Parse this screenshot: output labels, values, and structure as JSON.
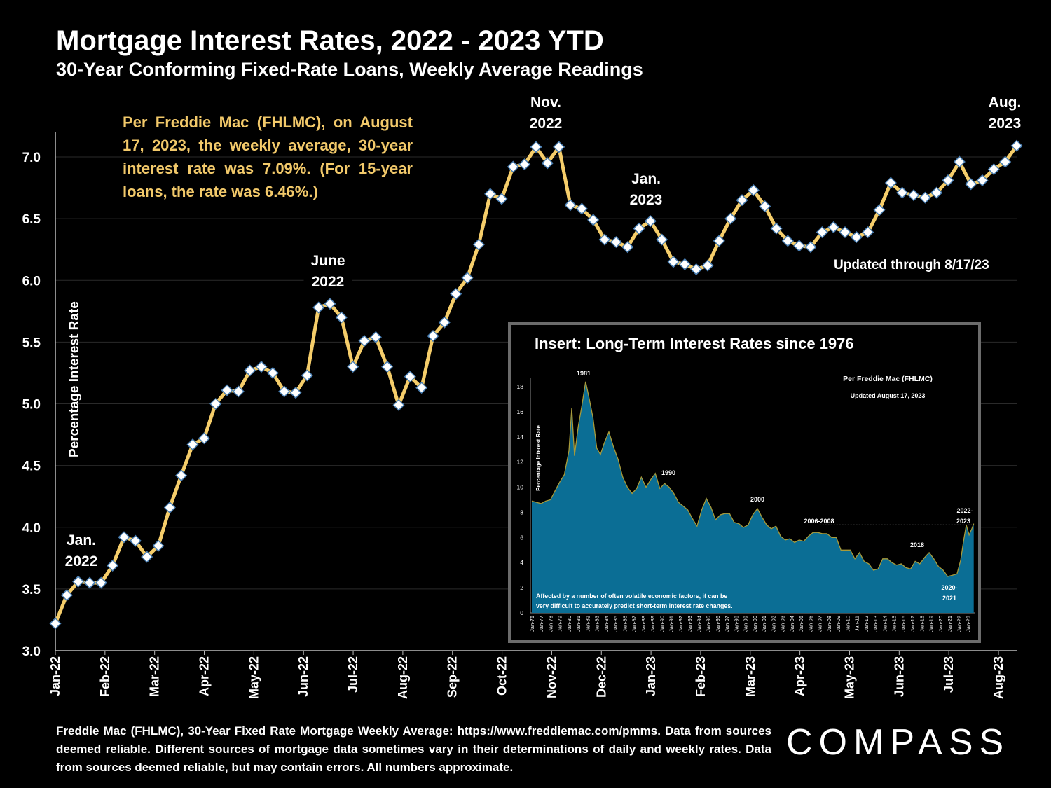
{
  "title": "Mortgage Interest Rates, 2022 - 2023 YTD",
  "subtitle": "30-Year Conforming Fixed-Rate Loans, Weekly Average Readings",
  "note": "Per Freddie Mac (FHLMC), on August 17, 2023, the weekly average, 30-year interest rate was 7.09%. (For 15-year loans, the rate was 6.46%.)",
  "updated": "Updated through 8/17/23",
  "footer": {
    "part1": "Freddie Mac (FHLMC), 30-Year Fixed Rate Mortgage Weekly Average:  https://www.freddiemac.com/pmms. Data from sources deemed reliable. ",
    "underlined": "Different sources of mortgage data sometimes vary in their determinations of daily and weekly rates.",
    "part2": " Data from sources deemed reliable, but may contain errors. All numbers approximate."
  },
  "logo": "COMPASS",
  "colors": {
    "line": "#f5cd6a",
    "marker": "#ffffff",
    "marker_edge": "#4a7fb3",
    "inset_fill": "#0b6e95",
    "inset_line": "#a89a3a"
  },
  "chart_data": [
    {
      "type": "line",
      "title": "Mortgage Interest Rates, 2022 - 2023 YTD",
      "ylabel": "Percentage Interest  Rate",
      "ylim": [
        3.0,
        7.2
      ],
      "yticks": [
        "3.0",
        "3.5",
        "4.0",
        "4.5",
        "5.0",
        "5.5",
        "6.0",
        "6.5",
        "7.0"
      ],
      "month_ticks": [
        "Jan-22",
        "Feb-22",
        "Mar-22",
        "Apr-22",
        "May-22",
        "Jun-22",
        "Jul-22",
        "Aug-22",
        "Sep-22",
        "Oct-22",
        "Nov-22",
        "Dec-22",
        "Jan-23",
        "Feb-23",
        "Mar-23",
        "Apr-23",
        "May-23",
        "Jun-23",
        "Jul-23",
        "Aug-23"
      ],
      "grid": true,
      "values": [
        3.22,
        3.45,
        3.56,
        3.55,
        3.55,
        3.69,
        3.92,
        3.89,
        3.76,
        3.85,
        4.16,
        4.42,
        4.67,
        4.72,
        5.0,
        5.11,
        5.1,
        5.27,
        5.3,
        5.25,
        5.1,
        5.09,
        5.23,
        5.78,
        5.81,
        5.7,
        5.3,
        5.51,
        5.54,
        5.3,
        4.99,
        5.22,
        5.13,
        5.55,
        5.66,
        5.89,
        6.02,
        6.29,
        6.7,
        6.66,
        6.92,
        6.94,
        7.08,
        6.95,
        7.08,
        6.61,
        6.58,
        6.49,
        6.33,
        6.31,
        6.27,
        6.42,
        6.48,
        6.33,
        6.15,
        6.13,
        6.09,
        6.12,
        6.32,
        6.5,
        6.65,
        6.73,
        6.6,
        6.42,
        6.32,
        6.28,
        6.27,
        6.39,
        6.43,
        6.39,
        6.35,
        6.39,
        6.57,
        6.79,
        6.71,
        6.69,
        6.67,
        6.71,
        6.81,
        6.96,
        6.78,
        6.81,
        6.9,
        6.96,
        7.09
      ],
      "annotations": [
        {
          "lines": [
            "Jan.",
            "2022"
          ]
        },
        {
          "lines": [
            "June",
            "2022"
          ]
        },
        {
          "lines": [
            "Nov.",
            "2022"
          ]
        },
        {
          "lines": [
            "Jan.",
            "2023"
          ]
        },
        {
          "lines": [
            "Aug.",
            "2023"
          ]
        }
      ]
    },
    {
      "type": "area",
      "title": "Insert: Long-Term Interest Rates since 1976",
      "ylabel": "Percentage Interest  Rate",
      "ylim": [
        0,
        18
      ],
      "yticks": [
        "0",
        "2",
        "4",
        "6",
        "8",
        "10",
        "12",
        "14",
        "16",
        "18"
      ],
      "years": [
        "Jan-76",
        "Jan-77",
        "Jan-78",
        "Jan-79",
        "Jan-80",
        "Jan-81",
        "Jan-82",
        "Jan-83",
        "Jan-84",
        "Jan-85",
        "Jan-86",
        "Jan-87",
        "Jan-88",
        "Jan-89",
        "Jan-90",
        "Jan-91",
        "Jan-92",
        "Jan-93",
        "Jan-94",
        "Jan-95",
        "Jan-96",
        "Jan-97",
        "Jan-98",
        "Jan-99",
        "Jan-00",
        "Jan-01",
        "Jan-02",
        "Jan-03",
        "Jan-04",
        "Jan-05",
        "Jan-06",
        "Jan-07",
        "Jan-08",
        "Jan-09",
        "Jan-10",
        "Jan-11",
        "Jan-12",
        "Jan-13",
        "Jan-14",
        "Jan-15",
        "Jan-16",
        "Jan-17",
        "Jan-18",
        "Jan-19",
        "Jan-20",
        "Jan-21",
        "Jan-22",
        "Jan-23"
      ],
      "series_points": [
        [
          1976.0,
          8.9
        ],
        [
          1976.5,
          8.8
        ],
        [
          1977.0,
          8.7
        ],
        [
          1977.5,
          8.9
        ],
        [
          1978.0,
          9.0
        ],
        [
          1978.5,
          9.7
        ],
        [
          1979.0,
          10.4
        ],
        [
          1979.5,
          11.0
        ],
        [
          1980.0,
          12.9
        ],
        [
          1980.3,
          16.3
        ],
        [
          1980.6,
          12.5
        ],
        [
          1981.0,
          14.8
        ],
        [
          1981.4,
          16.5
        ],
        [
          1981.8,
          18.4
        ],
        [
          1982.2,
          17.0
        ],
        [
          1982.6,
          15.5
        ],
        [
          1983.0,
          13.1
        ],
        [
          1983.4,
          12.6
        ],
        [
          1983.8,
          13.5
        ],
        [
          1984.3,
          14.4
        ],
        [
          1984.8,
          13.2
        ],
        [
          1985.3,
          12.2
        ],
        [
          1985.8,
          10.8
        ],
        [
          1986.3,
          10.0
        ],
        [
          1986.8,
          9.5
        ],
        [
          1987.3,
          9.9
        ],
        [
          1987.8,
          10.8
        ],
        [
          1988.3,
          10.0
        ],
        [
          1988.8,
          10.6
        ],
        [
          1989.3,
          11.1
        ],
        [
          1989.8,
          9.9
        ],
        [
          1990.3,
          10.3
        ],
        [
          1990.8,
          10.0
        ],
        [
          1991.3,
          9.5
        ],
        [
          1991.8,
          8.8
        ],
        [
          1992.3,
          8.5
        ],
        [
          1992.8,
          8.2
        ],
        [
          1993.3,
          7.5
        ],
        [
          1993.8,
          6.9
        ],
        [
          1994.3,
          8.2
        ],
        [
          1994.8,
          9.1
        ],
        [
          1995.3,
          8.4
        ],
        [
          1995.8,
          7.4
        ],
        [
          1996.3,
          7.8
        ],
        [
          1996.8,
          7.9
        ],
        [
          1997.3,
          7.9
        ],
        [
          1997.8,
          7.2
        ],
        [
          1998.3,
          7.1
        ],
        [
          1998.8,
          6.8
        ],
        [
          1999.3,
          7.0
        ],
        [
          1999.8,
          7.8
        ],
        [
          2000.3,
          8.3
        ],
        [
          2000.8,
          7.6
        ],
        [
          2001.3,
          7.0
        ],
        [
          2001.8,
          6.7
        ],
        [
          2002.3,
          6.9
        ],
        [
          2002.8,
          6.1
        ],
        [
          2003.3,
          5.8
        ],
        [
          2003.8,
          5.9
        ],
        [
          2004.3,
          5.6
        ],
        [
          2004.8,
          5.8
        ],
        [
          2005.3,
          5.7
        ],
        [
          2005.8,
          6.1
        ],
        [
          2006.3,
          6.4
        ],
        [
          2006.8,
          6.4
        ],
        [
          2007.3,
          6.3
        ],
        [
          2007.8,
          6.3
        ],
        [
          2008.3,
          6.0
        ],
        [
          2008.8,
          6.0
        ],
        [
          2009.3,
          5.0
        ],
        [
          2009.8,
          5.0
        ],
        [
          2010.3,
          5.0
        ],
        [
          2010.8,
          4.3
        ],
        [
          2011.3,
          4.8
        ],
        [
          2011.8,
          4.1
        ],
        [
          2012.3,
          3.9
        ],
        [
          2012.8,
          3.4
        ],
        [
          2013.3,
          3.5
        ],
        [
          2013.8,
          4.3
        ],
        [
          2014.3,
          4.3
        ],
        [
          2014.8,
          4.0
        ],
        [
          2015.3,
          3.8
        ],
        [
          2015.8,
          3.9
        ],
        [
          2016.3,
          3.6
        ],
        [
          2016.8,
          3.5
        ],
        [
          2017.3,
          4.1
        ],
        [
          2017.8,
          3.9
        ],
        [
          2018.3,
          4.4
        ],
        [
          2018.8,
          4.8
        ],
        [
          2019.3,
          4.3
        ],
        [
          2019.8,
          3.7
        ],
        [
          2020.3,
          3.4
        ],
        [
          2020.8,
          2.9
        ],
        [
          2021.3,
          3.0
        ],
        [
          2021.8,
          3.1
        ],
        [
          2022.2,
          4.2
        ],
        [
          2022.5,
          5.7
        ],
        [
          2022.8,
          7.0
        ],
        [
          2023.1,
          6.2
        ],
        [
          2023.4,
          6.7
        ],
        [
          2023.6,
          7.1
        ]
      ],
      "labels": {
        "credit": "Per Freddie Mac (FHLMC)",
        "updated": "Updated August 17, 2023",
        "peak": "1981",
        "y1990": "1990",
        "y2000": "2000",
        "y2006": "2006-2008",
        "y2018": "2018",
        "y2020a": "2020-",
        "y2020b": "2021",
        "y2022a": "2022-",
        "y2022b": "2023",
        "disclaimer1": "Affected by a number of often volatile economic factors, it can be",
        "disclaimer2": "very difficult to accurately predict short-term interest rate changes."
      }
    }
  ]
}
